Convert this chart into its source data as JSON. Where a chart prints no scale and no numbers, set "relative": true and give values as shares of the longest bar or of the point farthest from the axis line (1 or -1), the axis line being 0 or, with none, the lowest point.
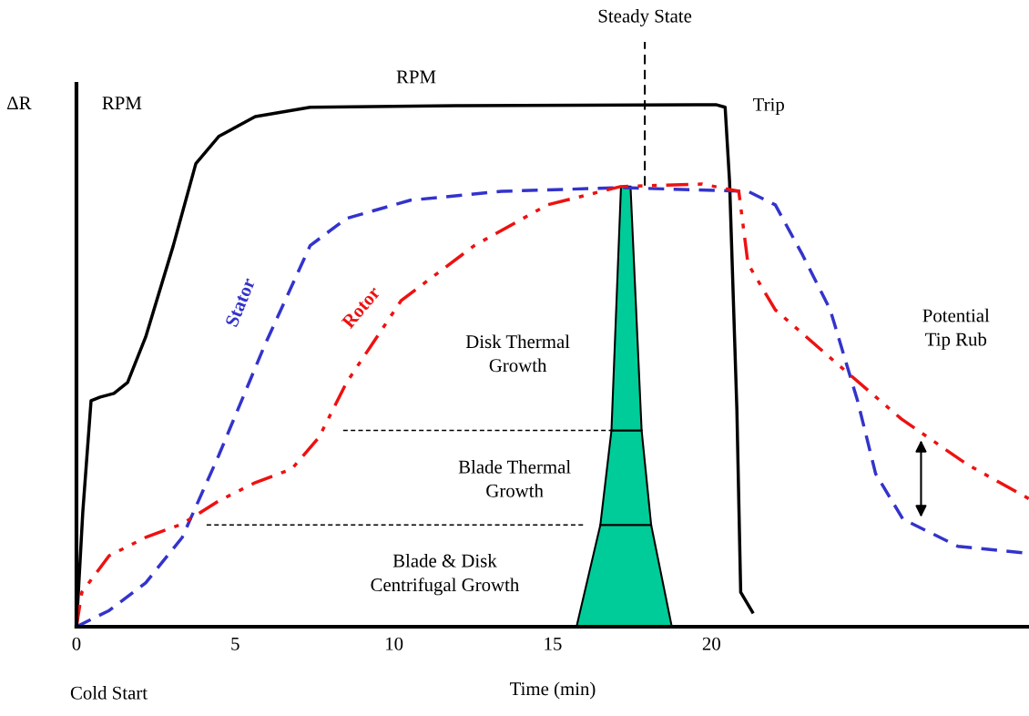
{
  "chart_data": {
    "type": "line",
    "relative": true,
    "xlabel": "Time (min)",
    "ylabel": "ΔR",
    "xlim": [
      0,
      30
    ],
    "xticks": [
      0,
      5,
      10,
      15,
      20
    ],
    "grid": false,
    "ref_lines": [
      {
        "axis": "x",
        "value": 17.9,
        "label": "Steady State",
        "line_style": "dashed",
        "color": "#000000"
      }
    ],
    "annotations": [
      "RPM",
      "Trip",
      "Cold Start",
      "Disk Thermal Growth",
      "Blade Thermal Growth",
      "Blade & Disk Centrifugal Growth",
      "Potential Tip Rub"
    ],
    "series": [
      {
        "name": "RPM",
        "color": "#000000",
        "line_style": "solid",
        "x": [
          0,
          0.2,
          0.46,
          0.75,
          1.18,
          1.61,
          2.18,
          3.05,
          3.76,
          4.48,
          5.63,
          7.36,
          11.95,
          20.14,
          20.43,
          20.57,
          20.8,
          20.92,
          21.29
        ],
        "values": [
          0,
          0.22,
          0.433,
          0.44,
          0.447,
          0.468,
          0.555,
          0.73,
          0.887,
          0.939,
          0.977,
          0.995,
          0.998,
          1.0,
          0.995,
          0.852,
          0.415,
          0.066,
          0.028
        ]
      },
      {
        "name": "Stator",
        "color": "#3333cc",
        "line_style": "dashed",
        "x": [
          0,
          1.03,
          2.18,
          3.33,
          4.48,
          5.92,
          7.36,
          8.5,
          10.52,
          13.39,
          17.13,
          21.15,
          22.01,
          22.87,
          23.74,
          24.6,
          25.17,
          26.03,
          27.76,
          29.91
        ],
        "values": [
          0,
          0.031,
          0.084,
          0.171,
          0.328,
          0.538,
          0.73,
          0.782,
          0.817,
          0.834,
          0.841,
          0.834,
          0.808,
          0.712,
          0.607,
          0.433,
          0.293,
          0.206,
          0.154,
          0.141
        ]
      },
      {
        "name": "Rotor",
        "color": "#ee1111",
        "line_style": "dashdotdot",
        "x": [
          0,
          0.17,
          1.03,
          2.18,
          3.33,
          4.48,
          5.63,
          6.78,
          7.64,
          8.51,
          10.23,
          12.53,
          14.83,
          17.13,
          19.71,
          20.86,
          21.15,
          22.01,
          23.97,
          25.98,
          28.05,
          30
        ],
        "values": [
          0,
          0.066,
          0.136,
          0.171,
          0.197,
          0.241,
          0.276,
          0.302,
          0.363,
          0.468,
          0.625,
          0.73,
          0.808,
          0.843,
          0.848,
          0.834,
          0.695,
          0.607,
          0.503,
          0.398,
          0.311,
          0.245
        ]
      }
    ]
  }
}
